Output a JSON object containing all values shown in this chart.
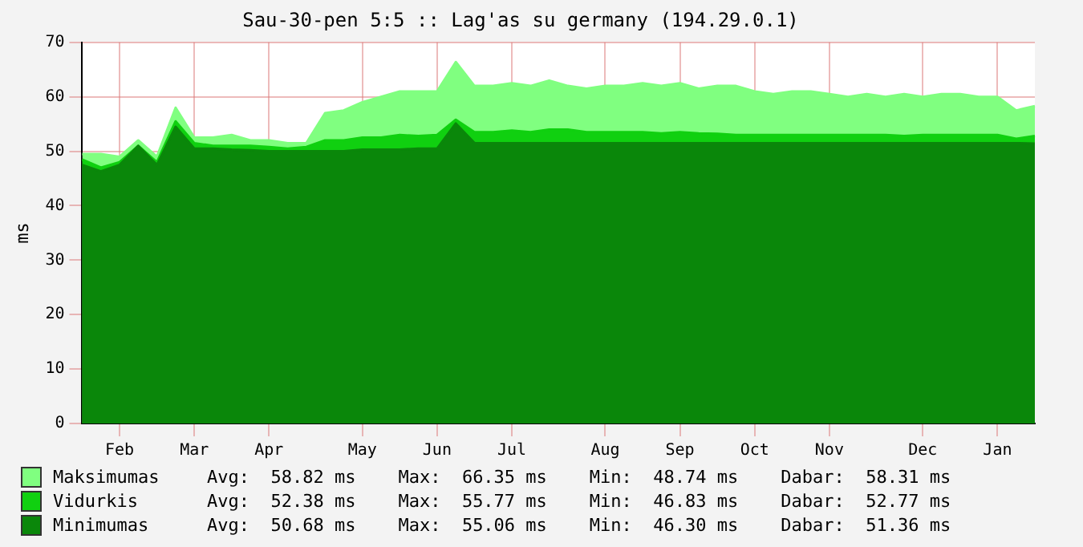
{
  "chart_data": {
    "type": "area",
    "title": "Sau-30-pen 5:5 :: Lag'as su germany (194.29.0.1)",
    "ylabel": "ms",
    "categories": [
      null,
      null,
      "Feb",
      null,
      null,
      null,
      "Mar",
      null,
      null,
      null,
      "Apr",
      null,
      null,
      null,
      null,
      "May",
      null,
      null,
      null,
      "Jun",
      null,
      null,
      null,
      "Jul",
      null,
      null,
      null,
      null,
      "Aug",
      null,
      null,
      null,
      "Sep",
      null,
      null,
      null,
      "Oct",
      null,
      null,
      null,
      "Nov",
      null,
      null,
      null,
      null,
      "Dec",
      null,
      null,
      null,
      "Jan",
      null,
      null
    ],
    "series": [
      {
        "name": "Maksimumas",
        "color": "#80ff80",
        "values": [
          49.5,
          49.5,
          49,
          52,
          49,
          58,
          52.5,
          52.5,
          53,
          52,
          52,
          51.5,
          51.5,
          57,
          57.5,
          59,
          60,
          61,
          61,
          61,
          66.4,
          62,
          62,
          62.5,
          62,
          63,
          62,
          61.5,
          62,
          62,
          62.5,
          62,
          62.5,
          61.5,
          62,
          62,
          61,
          60.5,
          61,
          61,
          60.5,
          60,
          60.5,
          60,
          60.5,
          60,
          60.5,
          60.5,
          60,
          60,
          57.5,
          58.3
        ]
      },
      {
        "name": "Vidurkis",
        "color": "#10d010",
        "values": [
          48.5,
          47,
          48,
          51,
          48,
          55.5,
          51.5,
          51,
          51,
          51,
          50.8,
          50.5,
          50.8,
          52,
          52,
          52.5,
          52.5,
          53,
          52.8,
          53,
          55.8,
          53.5,
          53.5,
          53.8,
          53.5,
          54,
          54,
          53.5,
          53.5,
          53.5,
          53.5,
          53.3,
          53.5,
          53.3,
          53.2,
          53,
          53,
          53,
          53,
          53,
          53,
          53,
          53,
          53,
          52.8,
          53,
          53,
          53,
          53,
          53,
          52.3,
          52.8
        ]
      },
      {
        "name": "Minimumas",
        "color": "#0a870a",
        "values": [
          47.5,
          46.3,
          47.5,
          51,
          47.5,
          54.5,
          50.5,
          50.5,
          50.3,
          50.2,
          50,
          50,
          50,
          50,
          50,
          50.3,
          50.3,
          50.3,
          50.5,
          50.5,
          55.1,
          51.5,
          51.5,
          51.5,
          51.5,
          51.5,
          51.5,
          51.5,
          51.5,
          51.5,
          51.5,
          51.5,
          51.5,
          51.5,
          51.5,
          51.5,
          51.5,
          51.5,
          51.5,
          51.5,
          51.5,
          51.5,
          51.5,
          51.5,
          51.5,
          51.5,
          51.5,
          51.5,
          51.5,
          51.5,
          51.5,
          51.4
        ]
      }
    ],
    "annotations": [
      "Avg:  58.82 ms    Max:  66.35 ms    Min:  48.74 ms    Dabar:  58.31 ms",
      "Avg:  52.38 ms    Max:  55.77 ms    Min:  46.83 ms    Dabar:  52.77 ms",
      "Avg:  50.68 ms    Max:  55.06 ms    Min:  46.30 ms    Dabar:  51.36 ms"
    ],
    "ylim": [
      0,
      70
    ],
    "yticks": [
      0,
      10,
      20,
      30,
      40,
      50,
      60,
      70
    ],
    "grid": true,
    "legend": "bottom"
  }
}
